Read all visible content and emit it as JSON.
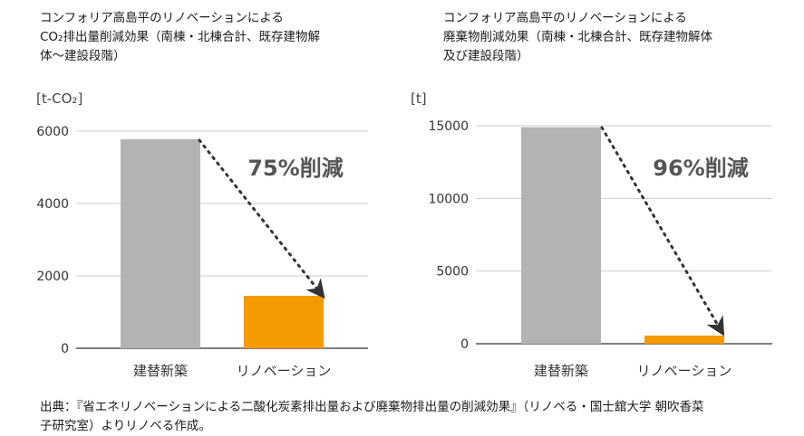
{
  "chart_data": [
    {
      "type": "bar",
      "title_lines": [
        "コンフォリア高島平のリノベーションによる",
        "CO₂排出量削減効果（南棟・北棟合計、既存建物解",
        "体〜建設段階）"
      ],
      "unit": "[t-CO₂]",
      "categories": [
        "建替新築",
        "リノベーション"
      ],
      "values": [
        5780,
        1450
      ],
      "ylim": [
        0,
        6000
      ],
      "yticks": [
        0,
        2000,
        4000,
        6000
      ],
      "annotation": "75%削減",
      "grid": true,
      "colors": [
        "#b3b3b3",
        "#f59a00"
      ]
    },
    {
      "type": "bar",
      "title_lines": [
        "コンフォリア高島平のリノベーションによる",
        "廃棄物削減効果（南棟・北棟合計、既存建物解体",
        "及び建設段階）"
      ],
      "unit": "[t]",
      "categories": [
        "建替新築",
        "リノベーション"
      ],
      "values": [
        14900,
        560
      ],
      "ylim": [
        0,
        15000
      ],
      "yticks": [
        0,
        5000,
        10000,
        15000
      ],
      "annotation": "96%削減",
      "grid": true,
      "colors": [
        "#b3b3b3",
        "#f59a00"
      ]
    }
  ],
  "source_lines": [
    "出典：『省エネリノベーションによる二酸化炭素排出量および廃棄物排出量の削減効果』（リノベる・国士舘大学 朝吹香菜",
    "子研究室）よりリノベる作成。"
  ]
}
